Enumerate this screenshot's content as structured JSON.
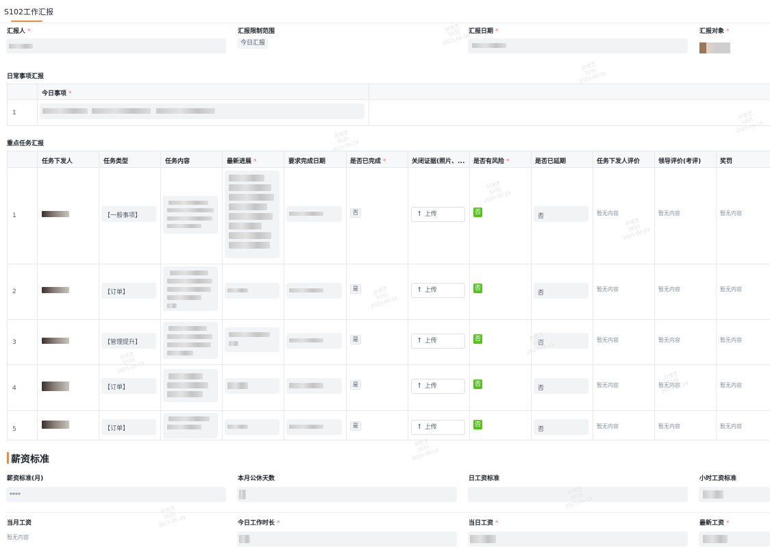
{
  "page": {
    "title": "S102工作汇报"
  },
  "header_fields": {
    "reporter_label": "汇报人",
    "scope_label": "汇报限制范围",
    "scope_value": "今日汇报",
    "date_label": "汇报日期",
    "target_label": "汇报对象"
  },
  "daily": {
    "section_title": "日常事项汇报",
    "column_header": "今日事项",
    "rows": [
      "1"
    ]
  },
  "tasks": {
    "section_title": "重点任务汇报",
    "columns": [
      "任务下发人",
      "任务类型",
      "任务内容",
      "最新进展",
      "要求完成日期",
      "是否已完成",
      "关闭证据(照片、...",
      "是否有风险",
      "是否已延期",
      "任务下发人评价",
      "领导评价(考评)",
      "奖罚"
    ],
    "upload_label": "上传",
    "risk_badge": "否",
    "delay_value": "否",
    "empty_text": "暂无内容",
    "rows": [
      {
        "num": "1",
        "type": "【一般事项】",
        "completed": "否"
      },
      {
        "num": "2",
        "type": "【订单】",
        "completed": "是"
      },
      {
        "num": "3",
        "type": "【管理提升】",
        "completed": "是"
      },
      {
        "num": "4",
        "type": "【订单】",
        "completed": "是"
      },
      {
        "num": "5",
        "type": "【订单】",
        "completed": "是"
      }
    ]
  },
  "salary": {
    "section_title": "薪资标准",
    "monthly_label": "薪资标准(月)",
    "monthly_value": "****",
    "rest_days_label": "本月公休天数",
    "daily_label": "日工资标准",
    "hourly_label": "小时工资标准",
    "month_wage_label": "当月工资",
    "month_wage_value": "暂无内容",
    "work_hours_label": "今日工作时长",
    "today_wage_label": "当日工资",
    "latest_wage_label": "最新工资"
  },
  "watermark": {
    "name": "孙世芝",
    "code": "5035",
    "date": "2025-06-19"
  },
  "colors": {
    "accent": "#f0883a",
    "required": "#f56c6c",
    "success": "#52c41a"
  }
}
